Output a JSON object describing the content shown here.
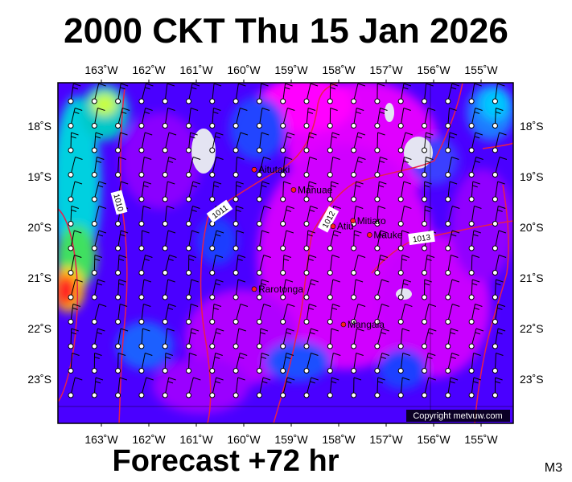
{
  "header": {
    "title": "2000 CKT Thu 15 Jan 2026"
  },
  "footer": {
    "forecast": "Forecast +72 hr",
    "model": "M3"
  },
  "map": {
    "lon_labels": [
      "163˚W",
      "162˚W",
      "161˚W",
      "160˚W",
      "159˚W",
      "158˚W",
      "157˚W",
      "156˚W",
      "155˚W"
    ],
    "lat_labels": [
      "18˚S",
      "19˚S",
      "20˚S",
      "21˚S",
      "22˚S",
      "23˚S"
    ],
    "places": [
      {
        "name": "Aitutaki",
        "lon": -159.78,
        "lat": -18.86
      },
      {
        "name": "Manuae",
        "lon": -158.95,
        "lat": -19.26
      },
      {
        "name": "Atiu",
        "lon": -158.12,
        "lat": -19.98
      },
      {
        "name": "Mitiaro",
        "lon": -157.7,
        "lat": -19.87
      },
      {
        "name": "Mauke",
        "lon": -157.35,
        "lat": -20.15
      },
      {
        "name": "Rarotonga",
        "lon": -159.78,
        "lat": -21.22
      },
      {
        "name": "Mangaia",
        "lon": -157.9,
        "lat": -21.92
      }
    ],
    "isobars": [
      {
        "label": "1010"
      },
      {
        "label": "1011"
      },
      {
        "label": "1012"
      },
      {
        "label": "1013"
      }
    ],
    "copyright": "Copyright metvuw.com",
    "colors": {
      "background": "#3d00ff",
      "magenta": "#ff00ff",
      "isobar": "#e8204a"
    }
  }
}
